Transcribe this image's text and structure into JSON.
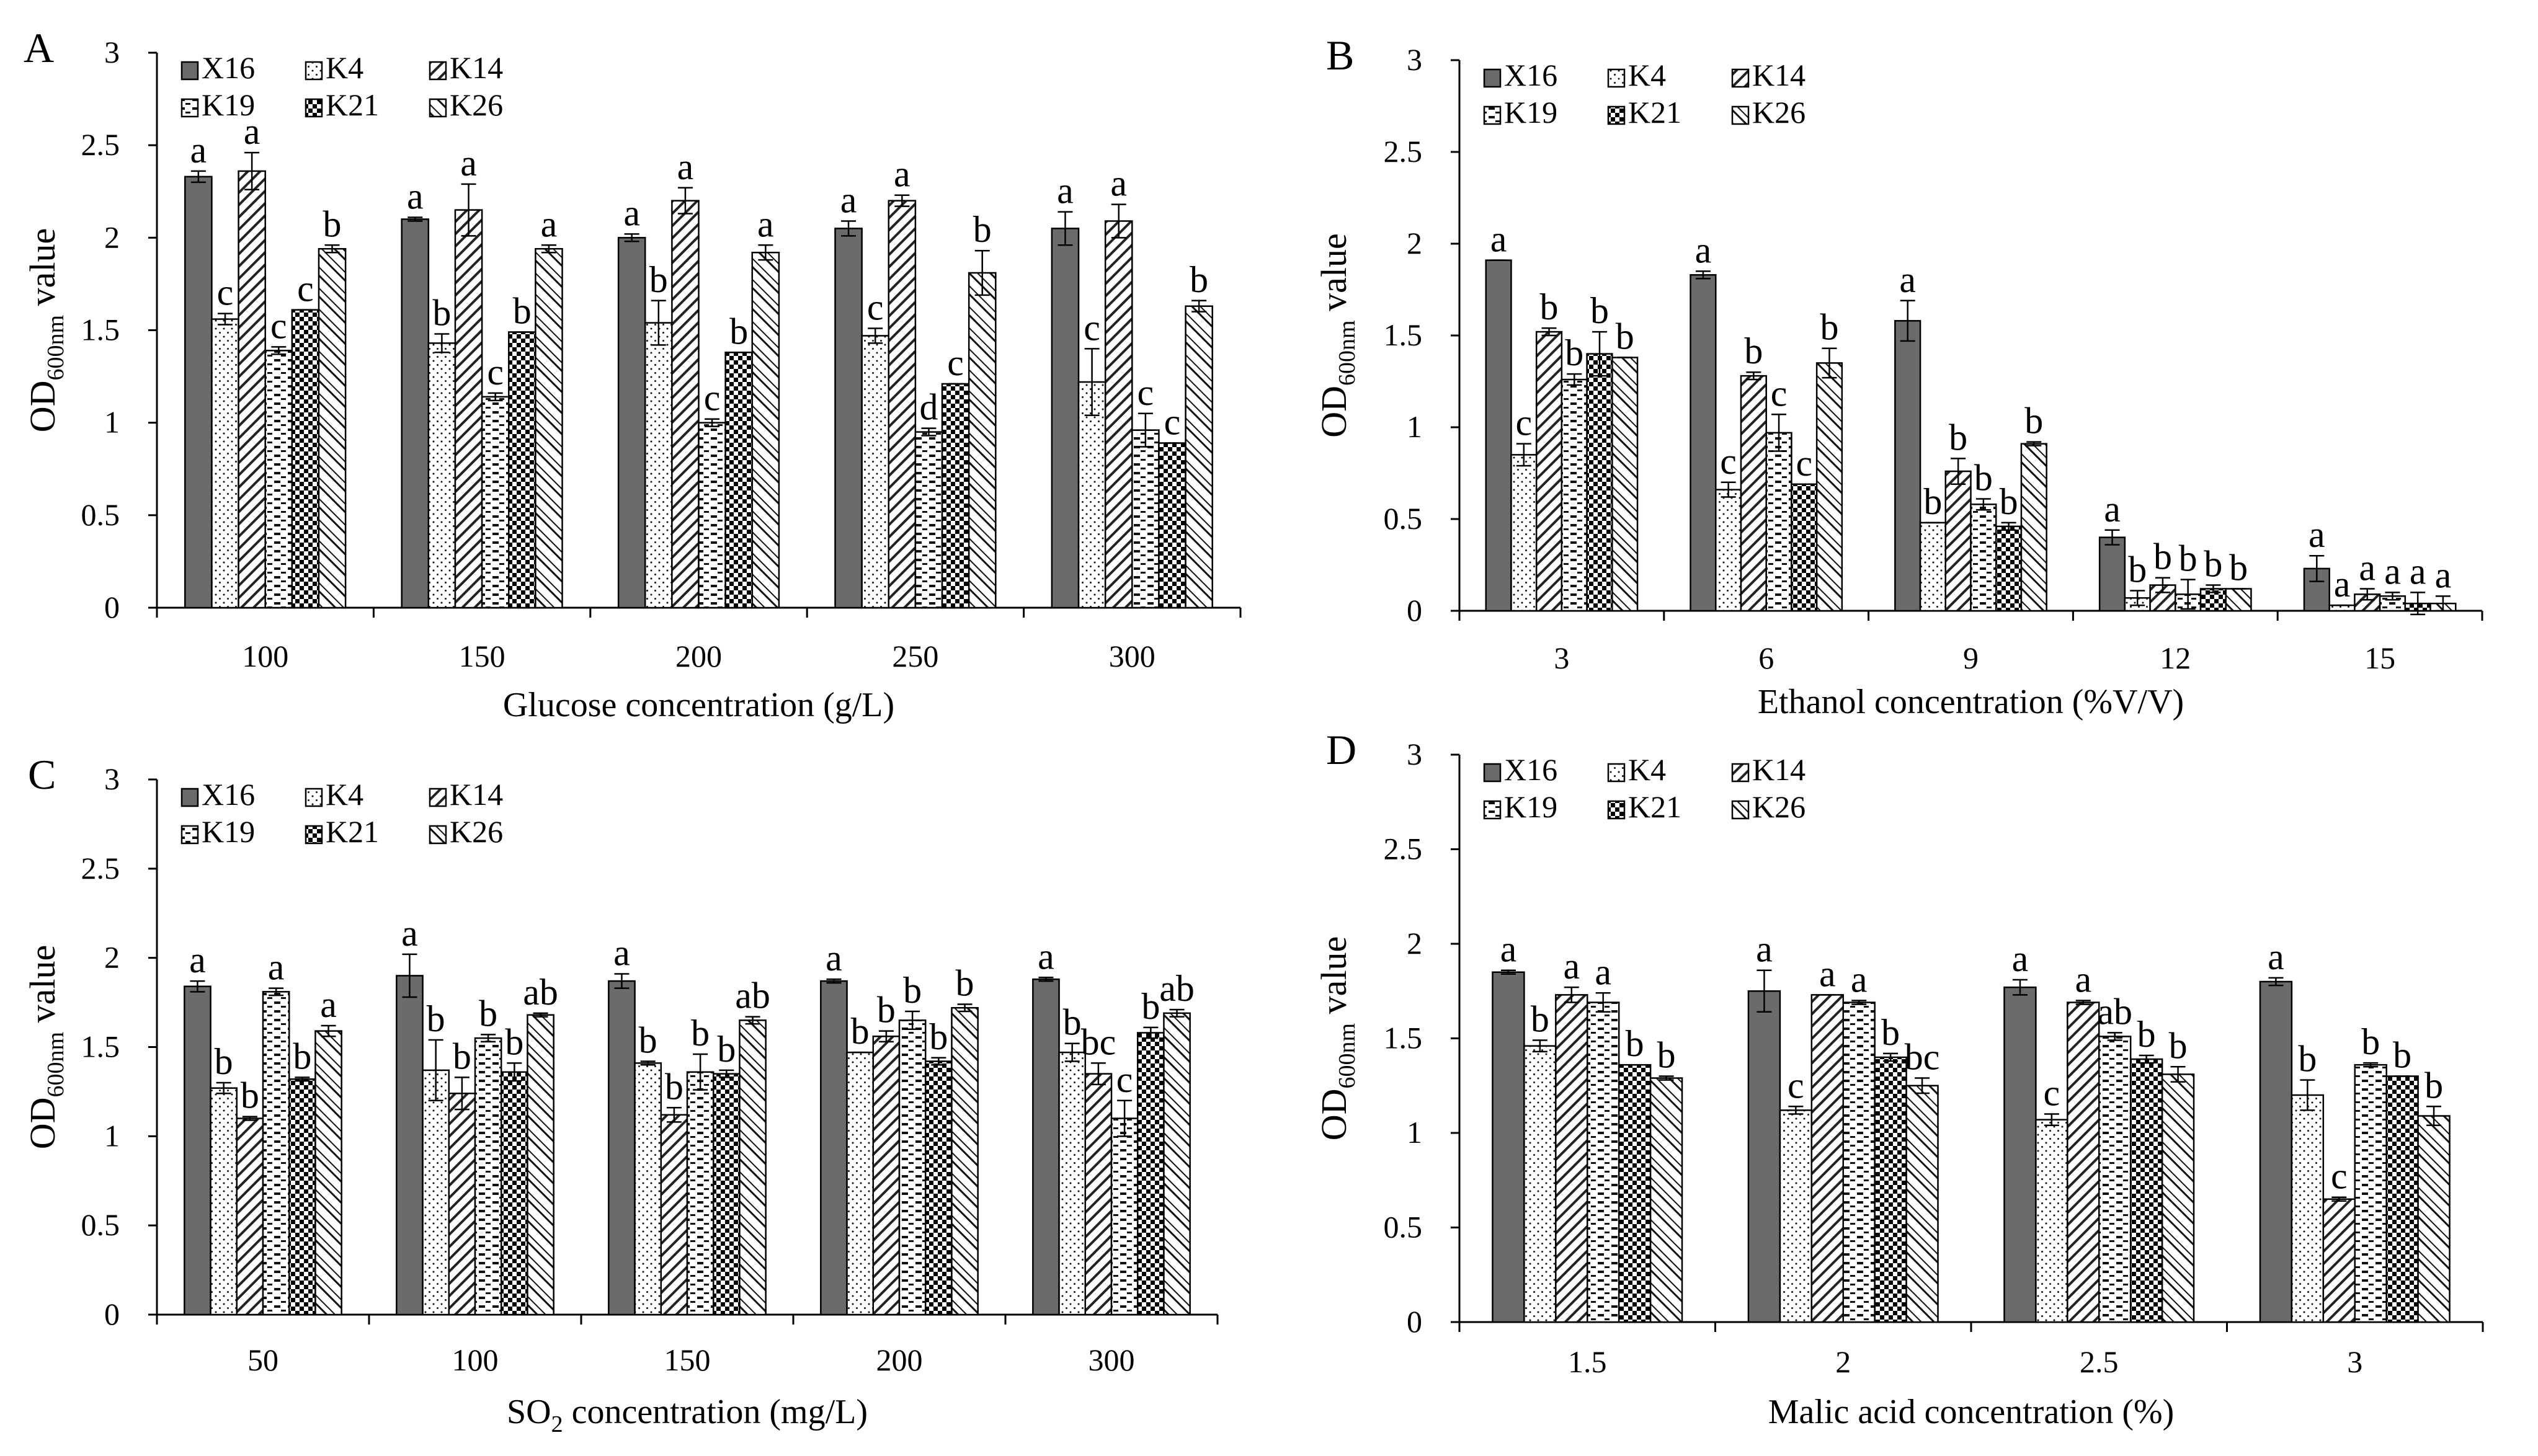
{
  "chart_data": [
    {
      "panel": "A",
      "type": "bar",
      "xlabel": "Glucose concentration (g/L)",
      "ylabel": "OD600nm value",
      "ylabel_main": "OD",
      "ylabel_sub": "600nm",
      "ylabel_tail": "value",
      "ylim": [
        0,
        3
      ],
      "yticks": [
        "0",
        "0.5",
        "1",
        "1.5",
        "2",
        "2.5",
        "3"
      ],
      "grid": false,
      "categories": [
        "100",
        "150",
        "200",
        "250",
        "300"
      ],
      "series": [
        {
          "name": "X16",
          "values": [
            2.33,
            2.1,
            2.0,
            2.05,
            2.05
          ],
          "errors": [
            0.03,
            0.01,
            0.02,
            0.04,
            0.09
          ],
          "letters": [
            "a",
            "a",
            "a",
            "a",
            "a"
          ]
        },
        {
          "name": "K4",
          "values": [
            1.56,
            1.43,
            1.54,
            1.47,
            1.22
          ],
          "errors": [
            0.03,
            0.05,
            0.12,
            0.04,
            0.18
          ],
          "letters": [
            "c",
            "b",
            "b",
            "c",
            "c"
          ]
        },
        {
          "name": "K14",
          "values": [
            2.36,
            2.15,
            2.2,
            2.2,
            2.09
          ],
          "errors": [
            0.1,
            0.14,
            0.07,
            0.03,
            0.09
          ],
          "letters": [
            "a",
            "a",
            "a",
            "a",
            "a"
          ]
        },
        {
          "name": "K19",
          "values": [
            1.39,
            1.14,
            1.0,
            0.95,
            0.96
          ],
          "errors": [
            0.02,
            0.02,
            0.02,
            0.02,
            0.09
          ],
          "letters": [
            "c",
            "c",
            "c",
            "d",
            "c"
          ]
        },
        {
          "name": "K21",
          "values": [
            1.61,
            1.49,
            1.38,
            1.21,
            0.89
          ],
          "errors": [
            0,
            0,
            0,
            0,
            0
          ],
          "letters": [
            "c",
            "b",
            "b",
            "c",
            "c"
          ]
        },
        {
          "name": "K26",
          "values": [
            1.94,
            1.94,
            1.92,
            1.81,
            1.63
          ],
          "errors": [
            0.02,
            0.02,
            0.04,
            0.12,
            0.03
          ],
          "letters": [
            "b",
            "a",
            "a",
            "b",
            "b"
          ]
        }
      ]
    },
    {
      "panel": "B",
      "type": "bar",
      "xlabel": "Ethanol concentration (%V/V)",
      "ylabel": "OD600nm value",
      "ylabel_main": "OD",
      "ylabel_sub": "600nm",
      "ylabel_tail": "value",
      "ylim": [
        0,
        3
      ],
      "yticks": [
        "0",
        "0.5",
        "1",
        "1.5",
        "2",
        "2.5",
        "3"
      ],
      "grid": false,
      "categories": [
        "3",
        "6",
        "9",
        "12",
        "15"
      ],
      "series": [
        {
          "name": "X16",
          "values": [
            1.91,
            1.83,
            1.58,
            0.4,
            0.23
          ],
          "errors": [
            0,
            0.02,
            0.11,
            0.04,
            0.07
          ],
          "letters": [
            "a",
            "a",
            "a",
            "a",
            "a"
          ]
        },
        {
          "name": "K4",
          "values": [
            0.85,
            0.66,
            0.48,
            0.07,
            0.03
          ],
          "errors": [
            0.06,
            0.04,
            0,
            0.04,
            0
          ],
          "letters": [
            "c",
            "c",
            "b",
            "b",
            "a"
          ]
        },
        {
          "name": "K14",
          "values": [
            1.52,
            1.28,
            0.76,
            0.14,
            0.09
          ],
          "errors": [
            0.02,
            0.02,
            0.07,
            0.04,
            0.03
          ],
          "letters": [
            "b",
            "b",
            "b",
            "b",
            "a"
          ]
        },
        {
          "name": "K19",
          "values": [
            1.26,
            0.97,
            0.58,
            0.09,
            0.08
          ],
          "errors": [
            0.03,
            0.1,
            0.03,
            0.08,
            0.02
          ],
          "letters": [
            "b",
            "c",
            "b",
            "b",
            "a"
          ]
        },
        {
          "name": "K21",
          "values": [
            1.4,
            0.69,
            0.46,
            0.12,
            0.04
          ],
          "errors": [
            0.12,
            0,
            0.02,
            0.02,
            0.06
          ],
          "letters": [
            "b",
            "c",
            "b",
            "b",
            "a"
          ]
        },
        {
          "name": "K26",
          "values": [
            1.38,
            1.35,
            0.91,
            0.12,
            0.04
          ],
          "errors": [
            0,
            0.08,
            0.01,
            0,
            0.04
          ],
          "letters": [
            "b",
            "b",
            "b",
            "b",
            "a"
          ]
        }
      ]
    },
    {
      "panel": "C",
      "type": "bar",
      "xlabel": "SO2 concentration (mg/L)",
      "xlabel_main": "SO",
      "xlabel_sub": "2",
      "xlabel_tail": " concentration (mg/L)",
      "ylabel": "OD600nm value",
      "ylabel_main": "OD",
      "ylabel_sub": "600nm",
      "ylabel_tail": "value",
      "ylim": [
        0,
        3
      ],
      "yticks": [
        "0",
        "0.5",
        "1",
        "1.5",
        "2",
        "2.5",
        "3"
      ],
      "grid": false,
      "categories": [
        "50",
        "100",
        "150",
        "200",
        "300"
      ],
      "series": [
        {
          "name": "X16",
          "values": [
            1.84,
            1.9,
            1.87,
            1.87,
            1.88
          ],
          "errors": [
            0.03,
            0.12,
            0.04,
            0.01,
            0.01
          ],
          "letters": [
            "a",
            "a",
            "a",
            "a",
            "a"
          ]
        },
        {
          "name": "K4",
          "values": [
            1.27,
            1.37,
            1.41,
            1.47,
            1.47
          ],
          "errors": [
            0.03,
            0.17,
            0.01,
            0,
            0.05
          ],
          "letters": [
            "b",
            "b",
            "b",
            "b",
            "b"
          ]
        },
        {
          "name": "K14",
          "values": [
            1.1,
            1.24,
            1.12,
            1.56,
            1.35
          ],
          "errors": [
            0.01,
            0.09,
            0.04,
            0.03,
            0.06
          ],
          "letters": [
            "b",
            "b",
            "b",
            "b",
            "bc"
          ]
        },
        {
          "name": "K19",
          "values": [
            1.81,
            1.55,
            1.36,
            1.65,
            1.1
          ],
          "errors": [
            0.02,
            0.02,
            0.1,
            0.05,
            0.1
          ],
          "letters": [
            "a",
            "b",
            "b",
            "b",
            "c"
          ]
        },
        {
          "name": "K21",
          "values": [
            1.32,
            1.36,
            1.35,
            1.42,
            1.58
          ],
          "errors": [
            0.01,
            0.05,
            0.02,
            0.02,
            0.03
          ],
          "letters": [
            "b",
            "b",
            "b",
            "b",
            "b"
          ]
        },
        {
          "name": "K26",
          "values": [
            1.59,
            1.68,
            1.65,
            1.72,
            1.69
          ],
          "errors": [
            0.03,
            0.01,
            0.02,
            0.02,
            0.02
          ],
          "letters": [
            "a",
            "ab",
            "ab",
            "b",
            "ab"
          ]
        }
      ]
    },
    {
      "panel": "D",
      "type": "bar",
      "xlabel": "Malic acid concentration (%)",
      "ylabel": "OD600nm value",
      "ylabel_main": "OD",
      "ylabel_sub": "600nm",
      "ylabel_tail": "value",
      "ylim": [
        0,
        3
      ],
      "yticks": [
        "0",
        "0.5",
        "1",
        "1.5",
        "2",
        "2.5",
        "3"
      ],
      "grid": false,
      "categories": [
        "1.5",
        "2",
        "2.5",
        "3"
      ],
      "series": [
        {
          "name": "X16",
          "values": [
            1.85,
            1.75,
            1.77,
            1.8
          ],
          "errors": [
            0.01,
            0.11,
            0.04,
            0.02
          ],
          "letters": [
            "a",
            "a",
            "a",
            "a"
          ]
        },
        {
          "name": "K4",
          "values": [
            1.46,
            1.12,
            1.07,
            1.2
          ],
          "errors": [
            0.03,
            0.02,
            0.03,
            0.08
          ],
          "letters": [
            "b",
            "c",
            "c",
            "b"
          ]
        },
        {
          "name": "K14",
          "values": [
            1.73,
            1.73,
            1.69,
            0.65
          ],
          "errors": [
            0.04,
            0,
            0.01,
            0.01
          ],
          "letters": [
            "a",
            "a",
            "a",
            "c"
          ]
        },
        {
          "name": "K19",
          "values": [
            1.69,
            1.69,
            1.51,
            1.36
          ],
          "errors": [
            0.05,
            0.01,
            0.02,
            0.01
          ],
          "letters": [
            "a",
            "a",
            "ab",
            "b"
          ]
        },
        {
          "name": "K21",
          "values": [
            1.36,
            1.4,
            1.39,
            1.3
          ],
          "errors": [
            0,
            0.02,
            0.02,
            0
          ],
          "letters": [
            "b",
            "b",
            "b",
            "b"
          ]
        },
        {
          "name": "K26",
          "values": [
            1.29,
            1.25,
            1.31,
            1.09
          ],
          "errors": [
            0.01,
            0.04,
            0.04,
            0.05
          ],
          "letters": [
            "b",
            "bc",
            "b",
            "b"
          ]
        }
      ]
    }
  ]
}
